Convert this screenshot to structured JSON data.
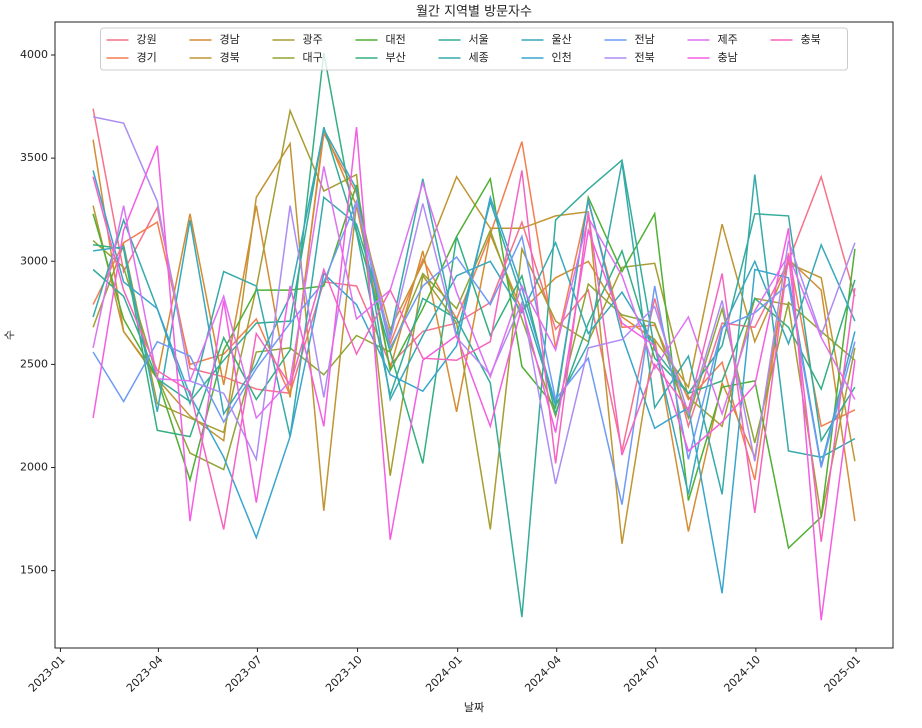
{
  "chart_data": {
    "type": "line",
    "title": "월간 지역별 방문자수",
    "xlabel": "날짜",
    "ylabel": "수",
    "x": [
      "2023-01",
      "2023-02",
      "2023-03",
      "2023-04",
      "2023-05",
      "2023-06",
      "2023-07",
      "2023-08",
      "2023-09",
      "2023-10",
      "2023-11",
      "2023-12",
      "2024-01",
      "2024-02",
      "2024-03",
      "2024-04",
      "2024-05",
      "2024-06",
      "2024-07",
      "2024-08",
      "2024-09",
      "2024-10",
      "2024-11",
      "2024-12"
    ],
    "xticks": [
      "2023-01",
      "2023-04",
      "2023-07",
      "2023-10",
      "2024-01",
      "2024-04",
      "2024-07",
      "2024-10",
      "2025-01"
    ],
    "ylim": [
      1125,
      4160
    ],
    "yticks": [
      1500,
      2000,
      2500,
      3000,
      3500,
      4000
    ],
    "grid": false,
    "legend": "upper center",
    "series": [
      {
        "name": "강원",
        "color": "#f77189",
        "values": [
          3740,
          2950,
          3260,
          2480,
          2440,
          2380,
          2360,
          2900,
          2880,
          2500,
          2660,
          2700,
          2800,
          3190,
          2670,
          2860,
          2080,
          2820,
          2200,
          2700,
          2680,
          3000,
          3410,
          2830
        ]
      },
      {
        "name": "경기",
        "color": "#f47e50",
        "values": [
          2790,
          3090,
          3190,
          2500,
          2550,
          2720,
          2350,
          3620,
          3330,
          2600,
          3010,
          2720,
          3130,
          3580,
          2580,
          3290,
          2680,
          2690,
          2330,
          2510,
          1940,
          3040,
          2200,
          2280
        ]
      },
      {
        "name": "경남",
        "color": "#d58c32",
        "values": [
          3590,
          2660,
          2440,
          3230,
          2400,
          3270,
          2340,
          3640,
          3270,
          2480,
          3050,
          2270,
          3130,
          2760,
          2920,
          3000,
          2730,
          2620,
          1690,
          2410,
          2050,
          3010,
          2860,
          1740
        ]
      },
      {
        "name": "경북",
        "color": "#c09532",
        "values": [
          3270,
          2660,
          2430,
          2250,
          2130,
          3310,
          3570,
          1790,
          3280,
          2670,
          2990,
          3410,
          3160,
          3160,
          3220,
          3240,
          1630,
          2620,
          2390,
          3180,
          2610,
          2990,
          2920,
          2030
        ]
      },
      {
        "name": "광주",
        "color": "#a79d31",
        "values": [
          2680,
          3080,
          2310,
          2240,
          2170,
          2870,
          3730,
          3340,
          3420,
          1960,
          2930,
          2700,
          1700,
          3060,
          2710,
          2610,
          2970,
          2990,
          2340,
          2200,
          2820,
          2790,
          1760,
          2580
        ]
      },
      {
        "name": "대구",
        "color": "#8fa531",
        "values": [
          3100,
          2970,
          2440,
          2070,
          1990,
          2560,
          2580,
          2450,
          2640,
          2560,
          2940,
          2770,
          3150,
          2720,
          2250,
          2890,
          2740,
          2700,
          2240,
          2770,
          2120,
          2800,
          2660,
          2520
        ]
      },
      {
        "name": "대전",
        "color": "#4fb033",
        "values": [
          3230,
          2720,
          2430,
          1940,
          2570,
          2860,
          2860,
          2880,
          3370,
          2470,
          2770,
          3120,
          3400,
          2490,
          2290,
          3310,
          2950,
          3230,
          1840,
          2390,
          2420,
          1610,
          1760,
          3060
        ]
      },
      {
        "name": "부산",
        "color": "#34af80",
        "values": [
          3080,
          3060,
          2180,
          2150,
          2630,
          2330,
          2570,
          4010,
          3150,
          2560,
          2020,
          3120,
          2640,
          2930,
          2260,
          2700,
          3050,
          2530,
          2360,
          2420,
          2820,
          2680,
          2380,
          2910
        ]
      },
      {
        "name": "서울",
        "color": "#35ac99",
        "values": [
          2960,
          2830,
          2430,
          2320,
          2520,
          2700,
          2710,
          3650,
          3140,
          2350,
          2820,
          2720,
          2410,
          1275,
          3200,
          3350,
          3490,
          2570,
          2360,
          2590,
          3230,
          3220,
          2130,
          2390
        ]
      },
      {
        "name": "세종",
        "color": "#36aaab",
        "values": [
          2730,
          3200,
          2770,
          2310,
          2950,
          2880,
          2150,
          3310,
          3180,
          2640,
          3400,
          2640,
          3290,
          2820,
          2300,
          2600,
          3480,
          2290,
          2540,
          1870,
          3420,
          2080,
          2050,
          2140
        ]
      },
      {
        "name": "울산",
        "color": "#38a8bb",
        "values": [
          3050,
          3070,
          2270,
          3200,
          2260,
          2500,
          2830,
          3640,
          3350,
          2330,
          2640,
          2930,
          3000,
          2750,
          3090,
          2650,
          2850,
          2590,
          1870,
          2670,
          3000,
          2600,
          3080,
          2710
        ]
      },
      {
        "name": "인천",
        "color": "#3aa5cd",
        "values": [
          3440,
          2900,
          2770,
          2350,
          2050,
          1660,
          2150,
          2940,
          2790,
          2450,
          2370,
          2590,
          3310,
          2870,
          2310,
          3300,
          2640,
          2190,
          2290,
          1390,
          2960,
          2920,
          2010,
          2660
        ]
      },
      {
        "name": "전남",
        "color": "#6e9bf4",
        "values": [
          2560,
          2320,
          2610,
          2540,
          2220,
          2480,
          2700,
          2900,
          3290,
          2580,
          2880,
          3020,
          2790,
          3120,
          2330,
          2530,
          1820,
          2880,
          2040,
          2680,
          2750,
          2890,
          2000,
          2610
        ]
      },
      {
        "name": "전북",
        "color": "#ad8cf4",
        "values": [
          3700,
          3670,
          3290,
          2420,
          2360,
          2040,
          3270,
          2340,
          3290,
          2620,
          3280,
          2630,
          2450,
          2800,
          1920,
          2580,
          2620,
          2780,
          2260,
          2810,
          2030,
          3100,
          2640,
          3090
        ]
      },
      {
        "name": "제주",
        "color": "#dd72f3",
        "values": [
          2580,
          3270,
          2430,
          2420,
          2830,
          2240,
          2420,
          3460,
          2720,
          2860,
          3380,
          2850,
          2440,
          2880,
          2570,
          3210,
          2930,
          2480,
          2730,
          2260,
          2760,
          3030,
          2630,
          2330
        ]
      },
      {
        "name": "충남",
        "color": "#f45ee3",
        "values": [
          2240,
          3150,
          3560,
          1740,
          2810,
          1830,
          2880,
          2200,
          3650,
          1650,
          2520,
          2640,
          2200,
          2780,
          2170,
          3150,
          2700,
          2590,
          2080,
          2220,
          2400,
          3160,
          1260,
          2520
        ]
      },
      {
        "name": "충북",
        "color": "#f564c0",
        "values": [
          3410,
          2860,
          2470,
          2370,
          1700,
          2650,
          2400,
          2960,
          2550,
          2860,
          2530,
          2520,
          2610,
          3440,
          2020,
          3240,
          2060,
          2500,
          2280,
          2940,
          1780,
          3030,
          1640,
          2870
        ]
      }
    ]
  }
}
